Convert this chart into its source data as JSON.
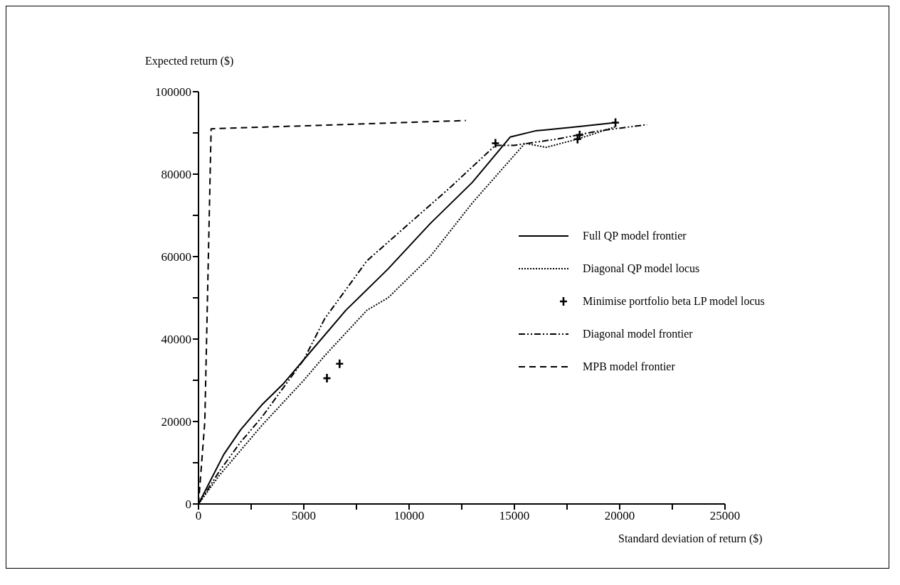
{
  "chart_data": {
    "type": "line",
    "xlabel": "Standard deviation of return ($)",
    "ylabel": "Expected return ($)",
    "xlim": [
      0,
      25000
    ],
    "ylim": [
      0,
      100000
    ],
    "xticks": [
      0,
      {
        "value": 2500,
        "label": null
      },
      5000,
      {
        "value": 7500,
        "label": null
      },
      10000,
      {
        "value": 12500,
        "label": null
      },
      15000,
      {
        "value": 17500,
        "label": null
      },
      20000,
      {
        "value": 22500,
        "label": null
      },
      25000
    ],
    "yticks": [
      0,
      {
        "value": 10000,
        "label": null
      },
      20000,
      {
        "value": 30000,
        "label": null
      },
      40000,
      {
        "value": 50000,
        "label": null
      },
      60000,
      {
        "value": 70000,
        "label": null
      },
      80000,
      {
        "value": 90000,
        "label": null
      },
      100000
    ],
    "grid": false,
    "legend": "right",
    "series": [
      {
        "name": "Full QP model frontier",
        "type": "line",
        "line_style": "solid",
        "color": "#000000",
        "x": [
          0,
          500,
          1200,
          2000,
          3000,
          4000,
          5000,
          7000,
          9000,
          11000,
          13000,
          14800,
          16000,
          18000,
          19800
        ],
        "values": [
          0,
          5000,
          12000,
          18000,
          24000,
          29000,
          35000,
          47000,
          57000,
          68000,
          78000,
          89000,
          90500,
          91500,
          92500
        ]
      },
      {
        "name": "Diagonal QP model locus",
        "type": "line",
        "line_style": "dotted",
        "color": "#000000",
        "x": [
          0,
          1000,
          3000,
          5000,
          6000,
          8000,
          9000,
          11000,
          13000,
          15500,
          16500,
          18000,
          19800
        ],
        "values": [
          0,
          7000,
          19000,
          30000,
          36000,
          47000,
          50000,
          60000,
          73000,
          87500,
          86500,
          88500,
          91500
        ]
      },
      {
        "name": "Minimise portfolio beta LP model locus",
        "type": "scatter",
        "marker": "cross",
        "color": "#000000",
        "x": [
          6100,
          6700,
          14100,
          18000,
          18100,
          19800
        ],
        "values": [
          30500,
          34000,
          87500,
          88500,
          89500,
          92500
        ]
      },
      {
        "name": "Diagonal model frontier",
        "type": "line",
        "line_style": "dashdot",
        "color": "#000000",
        "x": [
          0,
          1000,
          2000,
          3000,
          4000,
          5000,
          6000,
          7000,
          8000,
          10000,
          12000,
          14100,
          15000,
          17000,
          19000,
          21300
        ],
        "values": [
          0,
          8000,
          15000,
          21000,
          28000,
          35000,
          45000,
          52000,
          59000,
          68000,
          77000,
          87000,
          87000,
          88500,
          90500,
          92000
        ]
      },
      {
        "name": "MPB model frontier",
        "type": "line",
        "line_style": "dashed",
        "color": "#000000",
        "x": [
          0,
          300,
          600,
          12700
        ],
        "values": [
          0,
          20000,
          91000,
          93000
        ]
      }
    ]
  }
}
